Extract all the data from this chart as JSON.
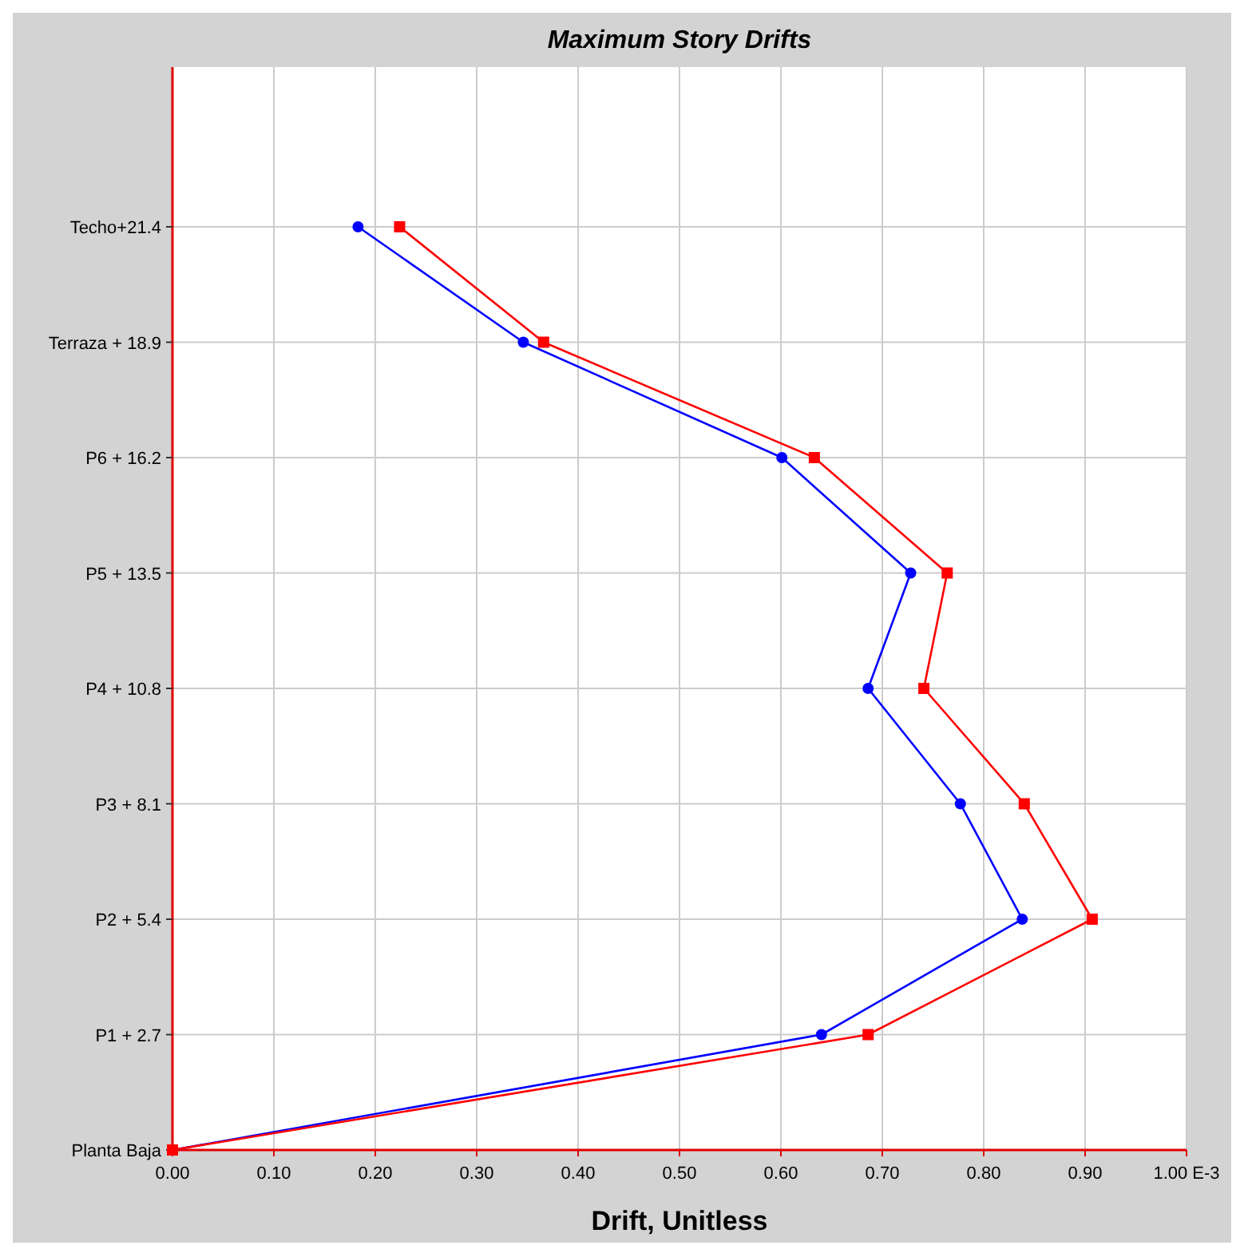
{
  "chart_data": {
    "type": "line",
    "orientation": "horizontal",
    "title": "Maximum Story Drifts",
    "xlabel": "Drift, Unitless",
    "xlim": [
      0,
      1
    ],
    "xticks": [
      {
        "value": 0,
        "label": "0.00"
      },
      {
        "value": 0.1,
        "label": "0.10"
      },
      {
        "value": 0.2,
        "label": "0.20"
      },
      {
        "value": 0.3,
        "label": "0.30"
      },
      {
        "value": 0.4,
        "label": "0.40"
      },
      {
        "value": 0.5,
        "label": "0.50"
      },
      {
        "value": 0.6,
        "label": "0.60"
      },
      {
        "value": 0.7,
        "label": "0.70"
      },
      {
        "value": 0.8,
        "label": "0.80"
      },
      {
        "value": 0.9,
        "label": "0.90"
      },
      {
        "value": 1,
        "label": "1.00 E-3"
      }
    ],
    "categories": [
      "Techo+21.4",
      "Terraza + 18.9",
      "P6 + 16.2",
      "P5 + 13.5",
      "P4 + 10.8",
      "P3 + 8.1",
      "P2 + 5.4",
      "P1 + 2.7",
      "Planta Baja"
    ],
    "grid": true,
    "series": [
      {
        "color": "#0000ff",
        "marker": "circle",
        "values": [
          0.183,
          0.346,
          0.601,
          0.728,
          0.686,
          0.777,
          0.838,
          0.64,
          0
        ]
      },
      {
        "color": "#ff0000",
        "marker": "square",
        "values": [
          0.224,
          0.366,
          0.633,
          0.764,
          0.741,
          0.84,
          0.907,
          0.686,
          0
        ]
      }
    ]
  }
}
